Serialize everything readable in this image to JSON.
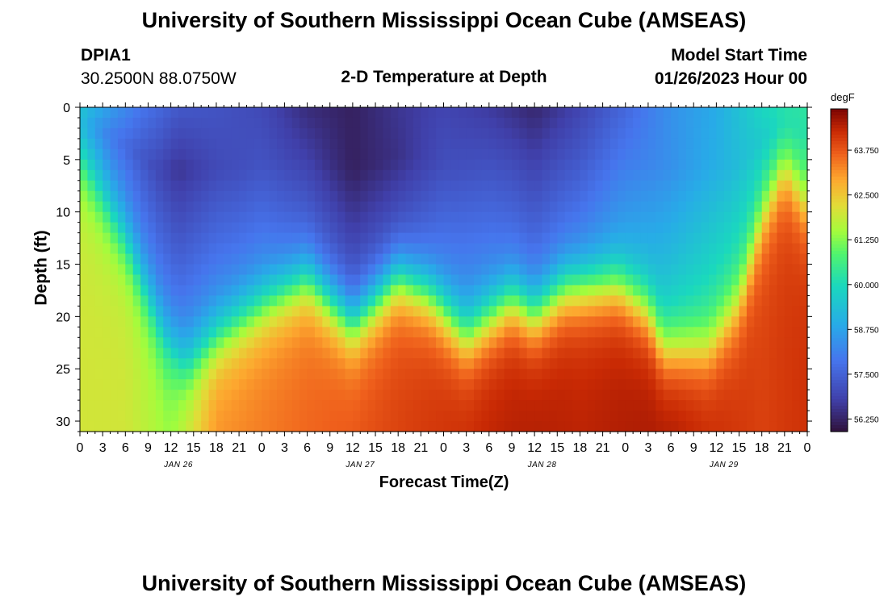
{
  "header": {
    "title": "University of Southern Mississippi Ocean Cube (AMSEAS)",
    "station_id": "DPIA1",
    "station_coords": "30.2500N  88.0750W",
    "plot_title": "2-D Temperature at Depth",
    "model_start_label": "Model Start Time",
    "model_start_value": "01/26/2023 Hour 00"
  },
  "footer": {
    "title": "University of Southern Mississippi Ocean Cube (AMSEAS)"
  },
  "colors": {
    "background": "#ffffff",
    "text": "#000000"
  },
  "chart_data": {
    "type": "heatmap",
    "title": "2-D Temperature at Depth",
    "xlabel": "Forecast Time(Z)",
    "ylabel": "Depth (ft)",
    "x_tick_labels": [
      "0",
      "3",
      "6",
      "9",
      "12",
      "15",
      "18",
      "21",
      "0",
      "3",
      "6",
      "9",
      "12",
      "15",
      "18",
      "21",
      "0",
      "3",
      "6",
      "9",
      "12",
      "15",
      "18",
      "21",
      "0",
      "3",
      "6",
      "9",
      "12",
      "15",
      "18",
      "21",
      "0"
    ],
    "date_labels": [
      {
        "label": "JAN 26",
        "hour": 13
      },
      {
        "label": "JAN 27",
        "hour": 37
      },
      {
        "label": "JAN 28",
        "hour": 61
      },
      {
        "label": "JAN 29",
        "hour": 85
      }
    ],
    "xlim_hours": [
      0,
      96
    ],
    "y_ticks": [
      0,
      5,
      10,
      15,
      20,
      25,
      30
    ],
    "ylim_ft": [
      0,
      31
    ],
    "colorbar": {
      "unit": "degF",
      "tick_labels": [
        "63.750",
        "62.500",
        "61.250",
        "60.000",
        "58.750",
        "57.500",
        "56.250"
      ],
      "tick_values": [
        63.75,
        62.5,
        61.25,
        60.0,
        58.75,
        57.5,
        56.25
      ],
      "range": [
        55.9,
        64.9
      ]
    },
    "layers": {
      "surface_temp_degF": [
        {
          "hour": 0,
          "value": 59.4
        },
        {
          "hour": 4,
          "value": 58.6
        },
        {
          "hour": 8,
          "value": 57.9
        },
        {
          "hour": 13,
          "value": 57.3
        },
        {
          "hour": 18,
          "value": 57.2
        },
        {
          "hour": 24,
          "value": 57.0
        },
        {
          "hour": 30,
          "value": 56.4
        },
        {
          "hour": 36,
          "value": 56.2
        },
        {
          "hour": 42,
          "value": 56.6
        },
        {
          "hour": 48,
          "value": 56.9
        },
        {
          "hour": 54,
          "value": 56.7
        },
        {
          "hour": 60,
          "value": 56.3
        },
        {
          "hour": 66,
          "value": 56.9
        },
        {
          "hour": 72,
          "value": 57.6
        },
        {
          "hour": 78,
          "value": 58.4
        },
        {
          "hour": 84,
          "value": 58.9
        },
        {
          "hour": 90,
          "value": 59.9
        },
        {
          "hour": 96,
          "value": 60.3
        }
      ],
      "cold_core_temp_degF": [
        {
          "hour": 0,
          "value": 59.0
        },
        {
          "hour": 4,
          "value": 58.0
        },
        {
          "hour": 8,
          "value": 57.3
        },
        {
          "hour": 13,
          "value": 56.6
        },
        {
          "hour": 18,
          "value": 57.0
        },
        {
          "hour": 24,
          "value": 57.2
        },
        {
          "hour": 30,
          "value": 56.8
        },
        {
          "hour": 36,
          "value": 56.2
        },
        {
          "hour": 42,
          "value": 56.5
        },
        {
          "hour": 48,
          "value": 57.1
        },
        {
          "hour": 54,
          "value": 57.2
        },
        {
          "hour": 60,
          "value": 56.9
        },
        {
          "hour": 66,
          "value": 57.3
        },
        {
          "hour": 72,
          "value": 58.0
        },
        {
          "hour": 78,
          "value": 58.4
        },
        {
          "hour": 84,
          "value": 59.0
        },
        {
          "hour": 90,
          "value": 59.6
        },
        {
          "hour": 96,
          "value": 60.2
        }
      ],
      "thermocline_depth_ft": [
        {
          "hour": 0,
          "value": 4
        },
        {
          "hour": 6,
          "value": 12
        },
        {
          "hour": 11,
          "value": 21
        },
        {
          "hour": 14,
          "value": 24
        },
        {
          "hour": 19,
          "value": 21
        },
        {
          "hour": 25,
          "value": 18
        },
        {
          "hour": 30,
          "value": 16
        },
        {
          "hour": 36,
          "value": 20.5
        },
        {
          "hour": 42,
          "value": 16
        },
        {
          "hour": 46,
          "value": 17.5
        },
        {
          "hour": 51,
          "value": 21.5
        },
        {
          "hour": 57,
          "value": 18
        },
        {
          "hour": 60,
          "value": 19.5
        },
        {
          "hour": 64,
          "value": 17
        },
        {
          "hour": 71,
          "value": 16.5
        },
        {
          "hour": 75,
          "value": 19
        },
        {
          "hour": 77,
          "value": 22.5
        },
        {
          "hour": 83,
          "value": 22.5
        },
        {
          "hour": 87,
          "value": 18
        },
        {
          "hour": 90,
          "value": 10
        },
        {
          "hour": 93,
          "value": 5
        },
        {
          "hour": 96,
          "value": 9
        }
      ],
      "bottom_temp_degF": [
        {
          "hour": 0,
          "value": 62.0
        },
        {
          "hour": 6,
          "value": 62.0
        },
        {
          "hour": 12,
          "value": 61.5
        },
        {
          "hour": 18,
          "value": 63.2
        },
        {
          "hour": 24,
          "value": 63.4
        },
        {
          "hour": 30,
          "value": 63.6
        },
        {
          "hour": 36,
          "value": 63.8
        },
        {
          "hour": 42,
          "value": 64.0
        },
        {
          "hour": 48,
          "value": 64.2
        },
        {
          "hour": 54,
          "value": 64.4
        },
        {
          "hour": 60,
          "value": 64.5
        },
        {
          "hour": 66,
          "value": 64.4
        },
        {
          "hour": 72,
          "value": 64.5
        },
        {
          "hour": 78,
          "value": 64.6
        },
        {
          "hour": 84,
          "value": 64.3
        },
        {
          "hour": 90,
          "value": 64.0
        },
        {
          "hour": 96,
          "value": 64.2
        }
      ]
    }
  }
}
